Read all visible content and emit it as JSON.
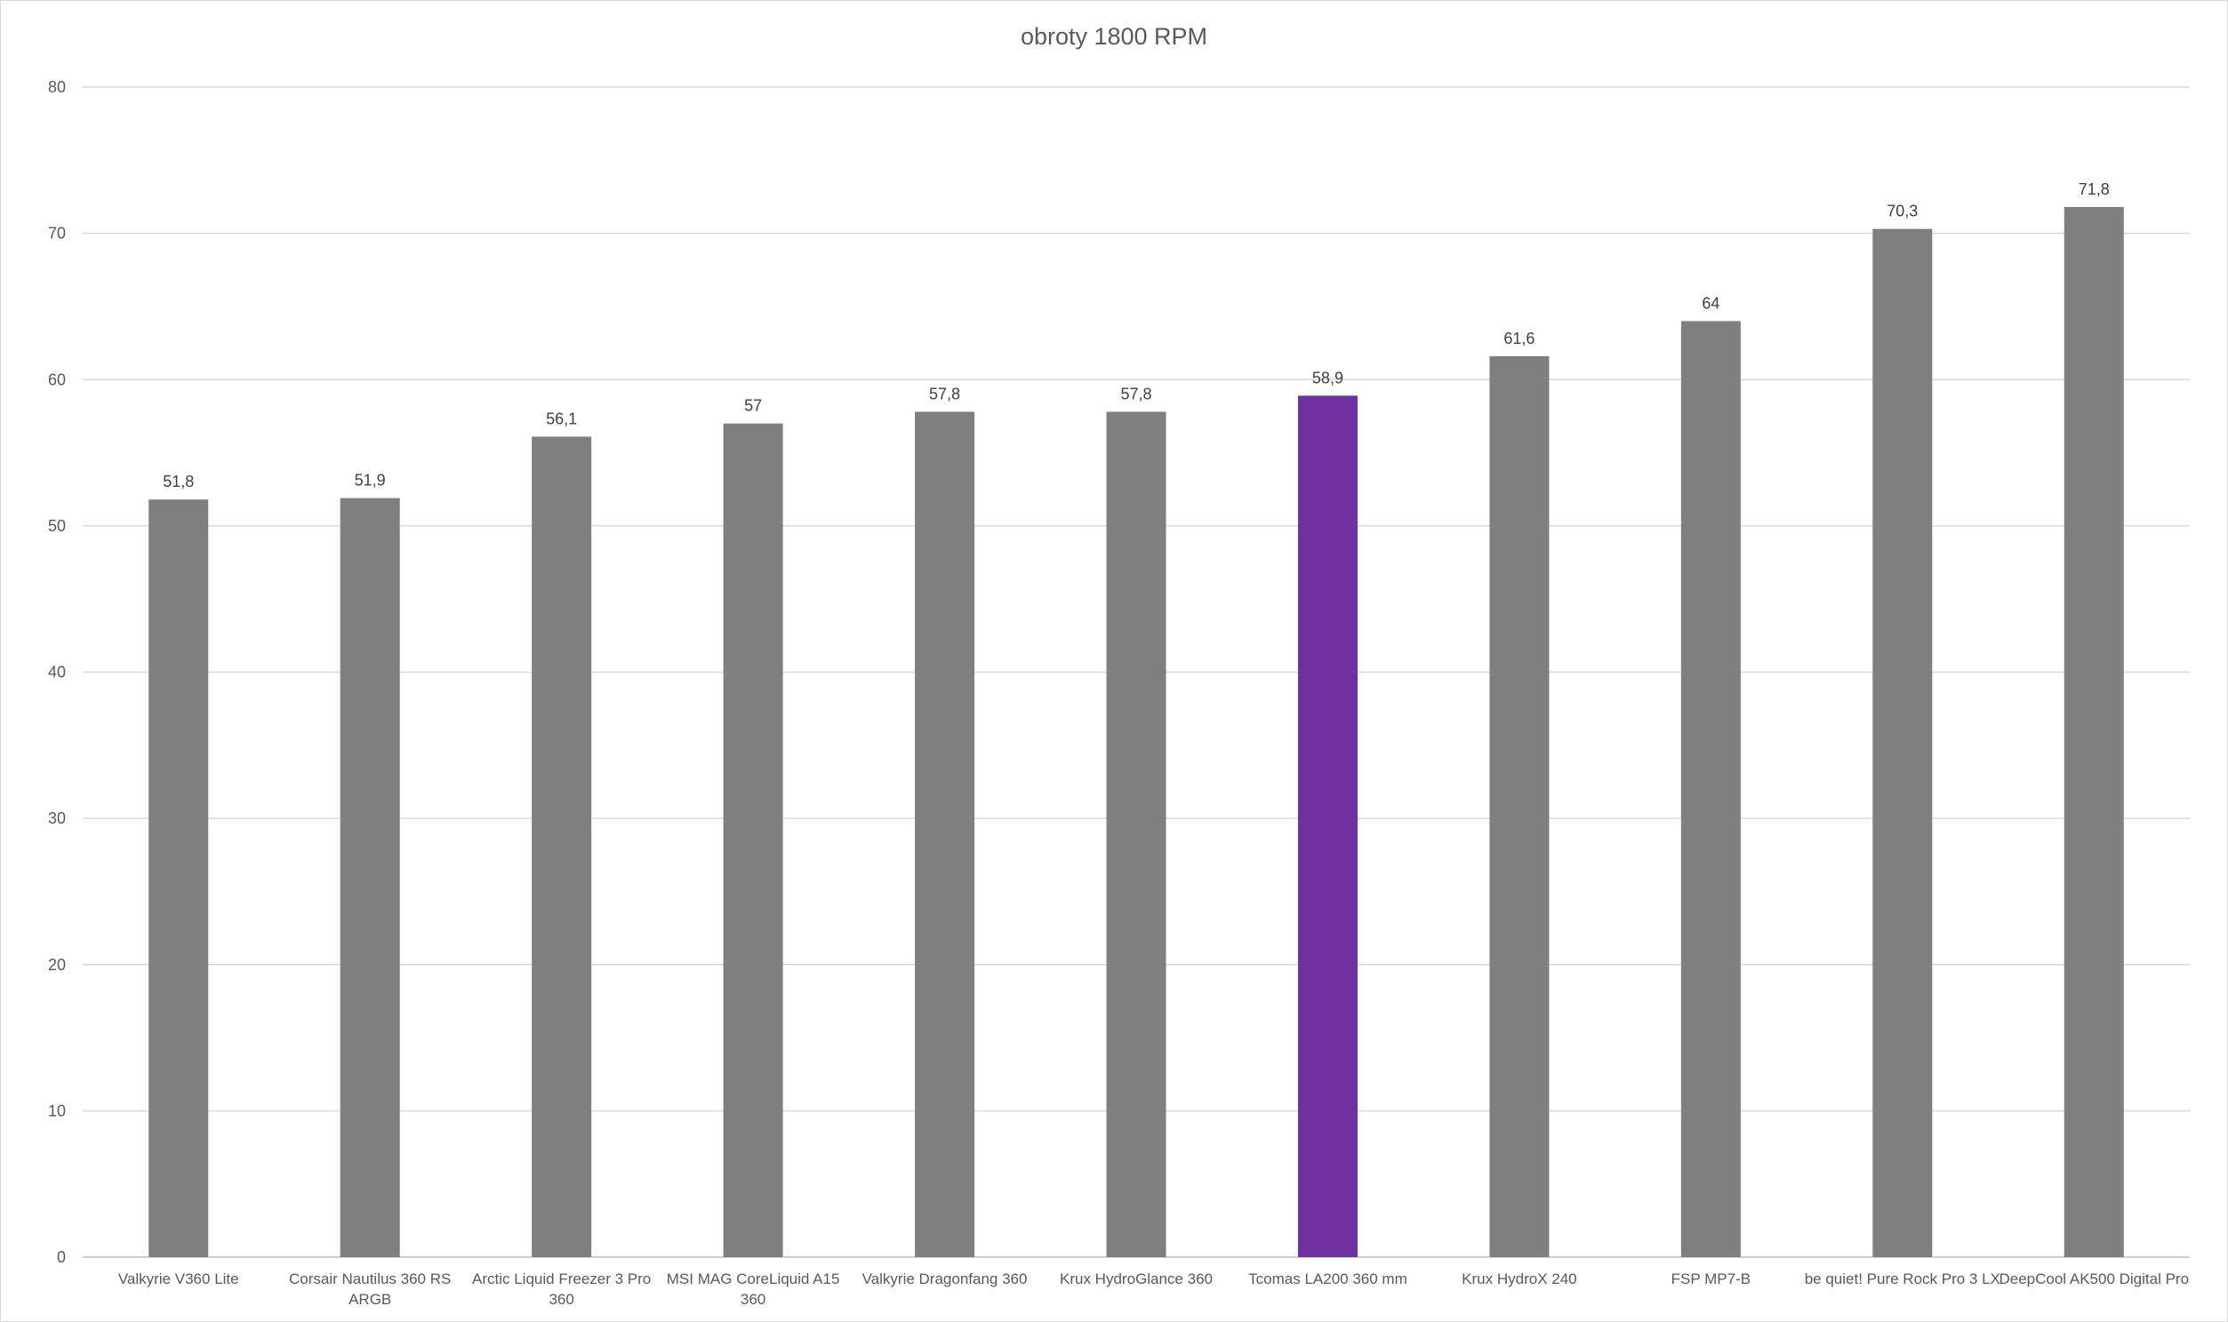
{
  "chart_data": {
    "type": "bar",
    "title": "obroty 1800 RPM",
    "xlabel": "",
    "ylabel": "",
    "ylim": [
      0,
      80
    ],
    "yticks": [
      0,
      10,
      20,
      30,
      40,
      50,
      60,
      70,
      80
    ],
    "grid": true,
    "legend": "none",
    "categories": [
      [
        "Valkyrie V360 Lite"
      ],
      [
        "Corsair Nautilus 360 RS",
        "ARGB"
      ],
      [
        "Arctic Liquid Freezer 3 Pro",
        "360"
      ],
      [
        "MSI MAG CoreLiquid A15",
        "360"
      ],
      [
        "Valkyrie Dragonfang 360"
      ],
      [
        "Krux HydroGlance 360"
      ],
      [
        "Tcomas LA200 360 mm"
      ],
      [
        "Krux HydroX  240"
      ],
      [
        "FSP MP7-B"
      ],
      [
        "be quiet! Pure Rock Pro 3 LX"
      ],
      [
        "DeepCool AK500 Digital Pro"
      ]
    ],
    "values": [
      51.8,
      51.9,
      56.1,
      57,
      57.8,
      57.8,
      58.9,
      61.6,
      64,
      70.3,
      71.8
    ],
    "data_labels": [
      "51,8",
      "51,9",
      "56,1",
      "57",
      "57,8",
      "57,8",
      "58,9",
      "61,6",
      "64",
      "70,3",
      "71,8"
    ],
    "colors": {
      "default_bar": "#7f7f7f",
      "highlight_bar": "#7030a0",
      "gridline": "#d9d9d9"
    },
    "highlight_index": 6
  }
}
